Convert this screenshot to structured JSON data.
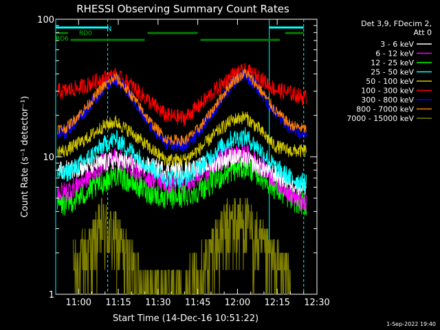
{
  "chart_data": {
    "type": "line",
    "title": "RHESSI Observing Summary Count Rates",
    "xlabel": "Start Time (14-Dec-16 10:51:22)",
    "ylabel": "Count Rate (s⁻¹ detector⁻¹)",
    "y_scale": "log",
    "ylim": [
      1,
      100
    ],
    "xlim": [
      "10:51:22",
      "12:30:00"
    ],
    "x_ticks": [
      "11:00",
      "11:15",
      "11:30",
      "11:45",
      "12:00",
      "12:15",
      "12:30"
    ],
    "y_ticks": [
      "1",
      "10",
      "100"
    ],
    "legend_header": [
      "Det 3,9, FDecim 2,",
      "Att 0"
    ],
    "legend_position": "top-right",
    "footer": "1-Sep-2022 19:40",
    "annotations": {
      "n_label": "N",
      "rd0_label": "RD0",
      "rd6_label": "RD6"
    },
    "series": [
      {
        "name": "3 - 6 keV",
        "color": "#ffffff",
        "x": [
          "10:55",
          "11:03",
          "11:09",
          "11:14",
          "11:20",
          "11:27",
          "11:33",
          "11:40",
          "11:46",
          "11:52",
          "11:58",
          "12:03",
          "12:08",
          "12:14",
          "12:20",
          "12:25"
        ],
        "y": [
          8,
          8.5,
          9,
          9.5,
          9,
          8.5,
          8,
          8,
          8.5,
          9,
          10,
          9.5,
          8.5,
          7.5,
          6.5,
          6
        ]
      },
      {
        "name": "6 - 12 keV",
        "color": "#ff00ff",
        "x": [
          "10:55",
          "11:03",
          "11:09",
          "11:14",
          "11:20",
          "11:27",
          "11:33",
          "11:40",
          "11:46",
          "11:52",
          "11:58",
          "12:03",
          "12:08",
          "12:14",
          "12:20",
          "12:25"
        ],
        "y": [
          5.5,
          7,
          9,
          10,
          8.5,
          7,
          6.5,
          6.5,
          7.5,
          9,
          10.5,
          10.5,
          9,
          7,
          5.5,
          4.5
        ]
      },
      {
        "name": "12 - 25 keV",
        "color": "#00ff00",
        "x": [
          "10:55",
          "11:03",
          "11:09",
          "11:14",
          "11:20",
          "11:27",
          "11:33",
          "11:40",
          "11:46",
          "11:52",
          "11:58",
          "12:03",
          "12:08",
          "12:14",
          "12:20",
          "12:25"
        ],
        "y": [
          4.5,
          5.5,
          6.5,
          7.5,
          6.5,
          5.5,
          5,
          5.2,
          5.8,
          6.8,
          8,
          8.5,
          7.5,
          6,
          5,
          4.5
        ]
      },
      {
        "name": "25 - 50 keV",
        "color": "#00ffff",
        "x": [
          "10:55",
          "11:03",
          "11:09",
          "11:14",
          "11:20",
          "11:27",
          "11:33",
          "11:40",
          "11:46",
          "11:52",
          "11:58",
          "12:03",
          "12:08",
          "12:14",
          "12:20",
          "12:25"
        ],
        "y": [
          7.5,
          9.5,
          12,
          13.5,
          11,
          8.5,
          7,
          7,
          8.5,
          11,
          13.5,
          14,
          11.5,
          8.5,
          7,
          6.5
        ]
      },
      {
        "name": "50 - 100 keV",
        "color": "#d4c800",
        "x": [
          "10:55",
          "11:03",
          "11:09",
          "11:14",
          "11:20",
          "11:27",
          "11:33",
          "11:40",
          "11:46",
          "11:52",
          "11:58",
          "12:03",
          "12:08",
          "12:14",
          "12:20",
          "12:25"
        ],
        "y": [
          11,
          13.5,
          16.5,
          18,
          15,
          11.5,
          9.5,
          9.5,
          11.5,
          15,
          18.5,
          19.5,
          16,
          12,
          11,
          11
        ]
      },
      {
        "name": "100 - 300 keV",
        "color": "#ff0000",
        "x": [
          "10:55",
          "11:03",
          "11:09",
          "11:14",
          "11:20",
          "11:27",
          "11:33",
          "11:40",
          "11:46",
          "11:52",
          "11:58",
          "12:03",
          "12:08",
          "12:14",
          "12:20",
          "12:25"
        ],
        "y": [
          30,
          33,
          37,
          39,
          33,
          25,
          20,
          19,
          24,
          31,
          39,
          42,
          38,
          31,
          29,
          27
        ]
      },
      {
        "name": "300 - 800 keV",
        "color": "#0000ff",
        "x": [
          "10:55",
          "11:03",
          "11:09",
          "11:14",
          "11:20",
          "11:27",
          "11:33",
          "11:40",
          "11:46",
          "11:52",
          "11:58",
          "12:03",
          "12:08",
          "12:14",
          "12:20",
          "12:25"
        ],
        "y": [
          15,
          22,
          31,
          37,
          27,
          17,
          12.5,
          12,
          15.5,
          23,
          34,
          40,
          31,
          21,
          16,
          15
        ]
      },
      {
        "name": "800 - 7000 keV",
        "color": "#ff8000",
        "x": [
          "10:55",
          "11:03",
          "11:09",
          "11:14",
          "11:20",
          "11:27",
          "11:33",
          "11:40",
          "11:46",
          "11:52",
          "11:58",
          "12:03",
          "12:08",
          "12:14",
          "12:20",
          "12:25"
        ],
        "y": [
          16,
          23,
          32,
          38,
          28,
          18,
          13.5,
          13,
          16.5,
          24,
          35,
          41,
          32,
          22,
          17,
          16
        ]
      },
      {
        "name": "7000 - 15000 keV",
        "color": "#808000",
        "x": [
          "10:58",
          "11:05",
          "11:09",
          "11:14",
          "11:20",
          "11:27",
          "11:33",
          "11:40",
          "11:46",
          "11:52",
          "11:58",
          "12:03",
          "12:08",
          "12:14",
          "12:20"
        ],
        "y": [
          1.5,
          2.2,
          3.2,
          2.6,
          1.6,
          1,
          1,
          1,
          1.4,
          2.4,
          3.4,
          3.3,
          2.3,
          1.6,
          1.3
        ]
      }
    ],
    "flag_bars": [
      {
        "label": "N",
        "color": "#00ffff",
        "segments": [
          [
            "10:51:22",
            "11:11:00"
          ],
          [
            "12:12:00",
            "12:25:00"
          ]
        ]
      },
      {
        "label": "RD0",
        "color": "#008000",
        "segments": [
          [
            "10:51:22",
            "10:56:00"
          ],
          [
            "11:26:00",
            "11:45:00"
          ],
          [
            "12:18:00",
            "12:25:00"
          ]
        ]
      },
      {
        "label": "RD6",
        "color": "#008000",
        "segments": [
          [
            "10:57:00",
            "11:25:00"
          ],
          [
            "11:46:00",
            "12:16:00"
          ]
        ]
      }
    ],
    "vertical_markers": [
      {
        "time": "10:51:22",
        "color": "#00ffff",
        "style": "solid"
      },
      {
        "time": "11:11:00",
        "color": "#00ffff",
        "style": "dashed"
      },
      {
        "time": "12:12:00",
        "color": "#00ffff",
        "style": "solid"
      },
      {
        "time": "12:25:00",
        "color": "#00ffff",
        "style": "dashed"
      }
    ]
  }
}
